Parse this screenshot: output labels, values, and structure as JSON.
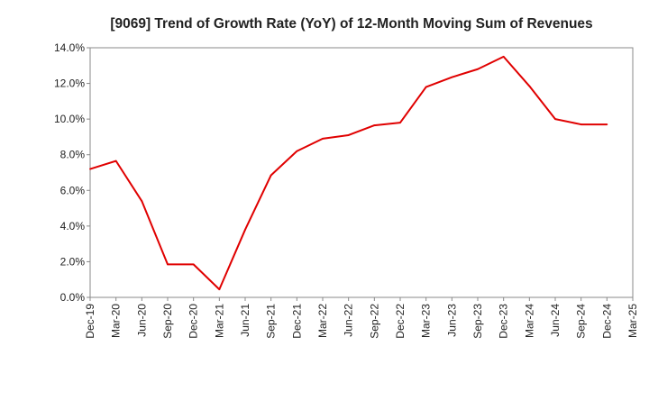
{
  "chart_data": {
    "type": "line",
    "title": "[9069]  Trend of Growth Rate (YoY) of 12-Month Moving Sum of Revenues",
    "xlabel": "",
    "ylabel": "",
    "ylim": [
      0,
      14
    ],
    "y_ticks": [
      "0.0%",
      "2.0%",
      "4.0%",
      "6.0%",
      "8.0%",
      "10.0%",
      "12.0%",
      "14.0%"
    ],
    "y_tick_values": [
      0,
      2,
      4,
      6,
      8,
      10,
      12,
      14
    ],
    "x_tick_labels": [
      "Dec-19",
      "Mar-20",
      "Jun-20",
      "Sep-20",
      "Dec-20",
      "Mar-21",
      "Jun-21",
      "Sep-21",
      "Dec-21",
      "Mar-22",
      "Jun-22",
      "Sep-22",
      "Dec-22",
      "Mar-23",
      "Jun-23",
      "Sep-23",
      "Dec-23",
      "Mar-24",
      "Jun-24",
      "Sep-24",
      "Dec-24",
      "Mar-25"
    ],
    "grid": true,
    "legend": "none",
    "series": [
      {
        "color": "#e00000",
        "x": [
          "Dec-19",
          "Mar-20",
          "Jun-20",
          "Sep-20",
          "Dec-20",
          "Mar-21",
          "Jun-21",
          "Sep-21",
          "Dec-21",
          "Mar-22",
          "Jun-22",
          "Sep-22",
          "Dec-22",
          "Mar-23",
          "Jun-23",
          "Sep-23",
          "Dec-23",
          "Mar-24",
          "Jun-24",
          "Sep-24",
          "Dec-24"
        ],
        "values": [
          7.2,
          7.65,
          5.4,
          1.85,
          1.85,
          0.45,
          3.8,
          6.85,
          8.2,
          8.9,
          9.1,
          9.65,
          9.8,
          11.8,
          12.35,
          12.8,
          13.5,
          11.85,
          10.0,
          9.7,
          9.7
        ]
      }
    ]
  }
}
